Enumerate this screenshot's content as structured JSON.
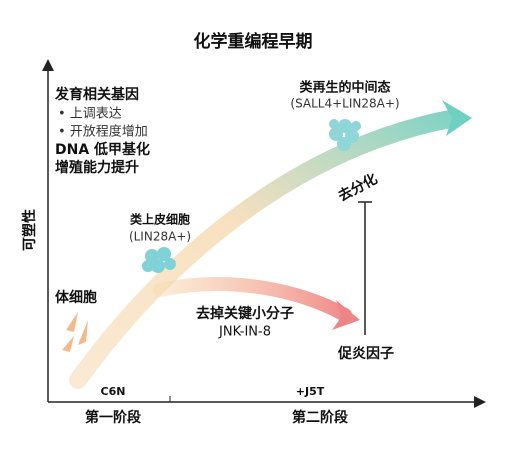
{
  "title": "化学重编程早期",
  "y_axis_label": "可塑性",
  "gene_box": {
    "heading": "发育相关基因",
    "bullets": [
      "• 上调表达",
      "• 开放程度增加"
    ],
    "lines": [
      "DNA 低甲基化",
      "增殖能力提升"
    ]
  },
  "nodes": [
    {
      "label": "体细胞"
    },
    {
      "label": "类上皮细胞",
      "sublabel": "(LIN28A+)"
    },
    {
      "label": "类再生的中间态",
      "sublabel": "(SALL4+LIN28A+)"
    },
    {
      "label": "促炎因子"
    }
  ],
  "dedifferentiation": "去分化",
  "branch": {
    "label": "去掉关键小分子",
    "sublabel": "JNK-IN-8"
  },
  "x_markers": [
    "C6N",
    "+J5T"
  ],
  "stages": [
    "第一阶段",
    "第二阶段"
  ]
}
